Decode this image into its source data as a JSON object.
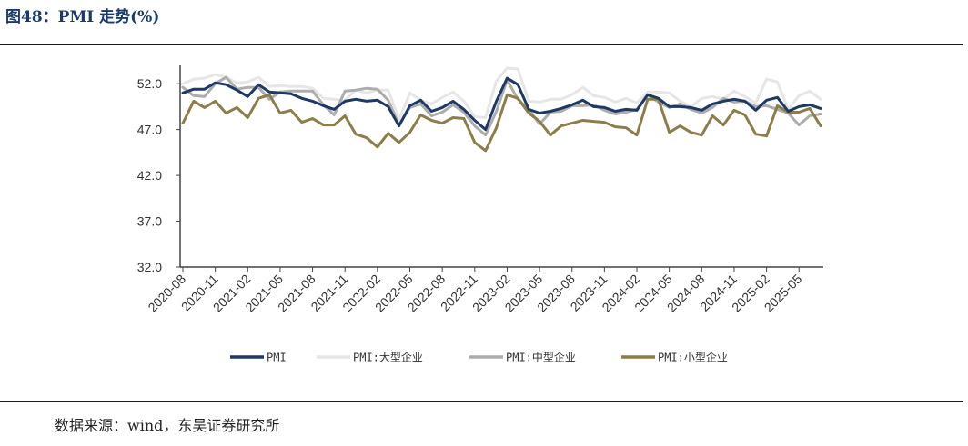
{
  "header": {
    "title": "图48：PMI 走势(%)"
  },
  "footer": {
    "source": "数据来源：wind，东吴证券研究所"
  },
  "chart_data": {
    "type": "line",
    "title": "PMI 走势(%)",
    "ylim": [
      32.0,
      54.0
    ],
    "yticks": [
      "52.0",
      "47.0",
      "42.0",
      "37.0",
      "32.0"
    ],
    "ytick_values": [
      52,
      47,
      42,
      37,
      32
    ],
    "x": [
      "2020-08",
      "2020-09",
      "2020-10",
      "2020-11",
      "2020-12",
      "2021-01",
      "2021-02",
      "2021-03",
      "2021-04",
      "2021-05",
      "2021-06",
      "2021-07",
      "2021-08",
      "2021-09",
      "2021-10",
      "2021-11",
      "2021-12",
      "2022-01",
      "2022-02",
      "2022-03",
      "2022-04",
      "2022-05",
      "2022-06",
      "2022-07",
      "2022-08",
      "2022-09",
      "2022-10",
      "2022-11",
      "2022-12",
      "2023-01",
      "2023-02",
      "2023-03",
      "2023-04",
      "2023-05",
      "2023-06",
      "2023-07",
      "2023-08",
      "2023-09",
      "2023-10",
      "2023-11",
      "2023-12",
      "2024-01",
      "2024-02",
      "2024-03",
      "2024-04",
      "2024-05",
      "2024-06",
      "2024-07",
      "2024-08",
      "2024-09",
      "2024-10",
      "2024-11",
      "2024-12",
      "2025-01",
      "2025-02",
      "2025-03",
      "2025-04",
      "2025-05",
      "2025-06",
      "2025-07"
    ],
    "xtick_labels": [
      "2020-08",
      "2020-11",
      "2021-02",
      "2021-05",
      "2021-08",
      "2021-11",
      "2022-02",
      "2022-05",
      "2022-08",
      "2022-11",
      "2023-02",
      "2023-05",
      "2023-08",
      "2023-11",
      "2024-02",
      "2024-05",
      "2024-08",
      "2024-11",
      "2025-02",
      "2025-05"
    ],
    "grid": false,
    "legend": "bottom",
    "series": [
      {
        "name": "PMI",
        "color": "#1f3864",
        "width": 3,
        "values": [
          51.0,
          51.4,
          51.4,
          52.1,
          51.9,
          51.3,
          50.6,
          51.9,
          51.1,
          51.0,
          50.9,
          50.4,
          50.1,
          49.6,
          49.2,
          50.1,
          50.3,
          50.1,
          50.2,
          49.5,
          47.4,
          49.6,
          50.2,
          49.0,
          49.4,
          50.1,
          49.2,
          48.0,
          47.0,
          50.1,
          52.6,
          51.9,
          49.2,
          48.8,
          49.0,
          49.3,
          49.7,
          50.2,
          49.5,
          49.4,
          49.0,
          49.2,
          49.1,
          50.8,
          50.4,
          49.5,
          49.5,
          49.4,
          49.1,
          49.8,
          50.1,
          50.3,
          50.1,
          49.1,
          50.2,
          50.5,
          49.0,
          49.5,
          49.7,
          49.3
        ]
      },
      {
        "name": "PMI:大型企业",
        "color": "#e6e6e6",
        "width": 3,
        "values": [
          52.0,
          52.5,
          52.6,
          53.0,
          52.7,
          52.1,
          52.2,
          52.7,
          51.7,
          51.8,
          51.7,
          51.7,
          51.5,
          50.4,
          50.3,
          50.2,
          51.3,
          51.0,
          51.3,
          51.3,
          48.1,
          51.0,
          50.2,
          49.8,
          50.5,
          51.1,
          50.1,
          48.4,
          48.3,
          52.3,
          53.7,
          53.6,
          50.1,
          50.0,
          50.3,
          50.3,
          50.8,
          51.6,
          50.7,
          50.5,
          50.0,
          50.4,
          49.9,
          51.1,
          51.1,
          51.0,
          50.1,
          49.5,
          50.4,
          50.6,
          50.3,
          51.2,
          50.6,
          49.9,
          52.5,
          52.2,
          49.2,
          50.7,
          51.2,
          50.3
        ]
      },
      {
        "name": "PMI:中型企业",
        "color": "#adadad",
        "width": 3,
        "values": [
          51.6,
          50.7,
          50.6,
          52.0,
          52.7,
          51.4,
          51.6,
          51.6,
          50.3,
          51.1,
          51.2,
          51.2,
          51.2,
          49.7,
          48.6,
          51.2,
          51.3,
          51.5,
          51.4,
          50.2,
          47.5,
          49.4,
          49.8,
          48.5,
          48.9,
          49.7,
          48.9,
          47.4,
          46.4,
          49.0,
          52.4,
          50.3,
          49.2,
          47.6,
          48.9,
          49.0,
          49.6,
          49.6,
          49.7,
          49.1,
          48.7,
          48.9,
          49.2,
          50.8,
          50.0,
          49.4,
          49.8,
          49.2,
          48.8,
          49.4,
          50.4,
          50.0,
          50.1,
          49.5,
          49.6,
          49.2,
          48.8,
          47.5,
          48.5,
          48.7
        ]
      },
      {
        "name": "PMI:小型企业",
        "color": "#8b7e4a",
        "width": 3,
        "values": [
          47.7,
          50.1,
          49.4,
          50.1,
          48.8,
          49.4,
          48.3,
          50.4,
          50.8,
          48.8,
          49.1,
          47.8,
          48.2,
          47.5,
          47.5,
          48.5,
          46.5,
          46.1,
          45.1,
          46.6,
          45.6,
          46.7,
          48.6,
          48.0,
          47.7,
          48.3,
          48.2,
          45.6,
          44.7,
          47.2,
          50.8,
          50.4,
          48.8,
          47.9,
          46.4,
          47.4,
          47.7,
          48.0,
          47.9,
          47.8,
          47.3,
          47.2,
          46.4,
          50.3,
          50.3,
          46.7,
          47.4,
          46.7,
          46.4,
          48.5,
          47.5,
          49.1,
          48.6,
          46.5,
          46.3,
          49.6,
          48.9,
          48.9,
          49.3,
          47.4
        ]
      }
    ]
  }
}
